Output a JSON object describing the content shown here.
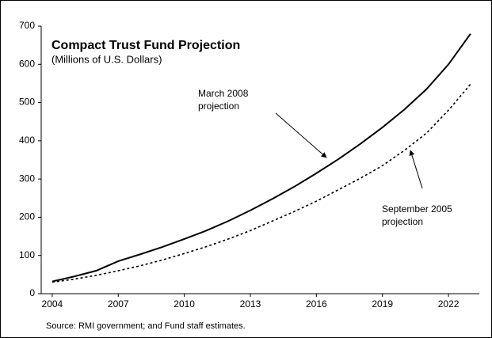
{
  "chart_data": {
    "type": "line",
    "title": "Compact Trust Fund Projection",
    "subtitle": "(Millions of U.S. Dollars)",
    "source": "Source: RMI government; and Fund staff estimates.",
    "x": [
      2004,
      2005,
      2006,
      2007,
      2008,
      2009,
      2010,
      2011,
      2012,
      2013,
      2014,
      2015,
      2016,
      2017,
      2018,
      2019,
      2020,
      2021,
      2022,
      2023
    ],
    "series": [
      {
        "name": [
          "March 2008",
          "projection"
        ],
        "color": "#000000",
        "dash": "solid",
        "values": [
          32,
          45,
          60,
          85,
          103,
          122,
          143,
          165,
          190,
          218,
          248,
          280,
          315,
          352,
          392,
          435,
          482,
          535,
          600,
          680
        ]
      },
      {
        "name": [
          "September 2005",
          "projection"
        ],
        "color": "#000000",
        "dash": "dotted",
        "values": [
          30,
          38,
          48,
          60,
          73,
          88,
          105,
          123,
          143,
          165,
          190,
          215,
          242,
          272,
          302,
          335,
          375,
          420,
          480,
          548
        ]
      }
    ],
    "xlim": [
      2003.5,
      2023.4
    ],
    "xticks": [
      2004,
      2007,
      2010,
      2013,
      2016,
      2019,
      2022
    ],
    "ylim": [
      0,
      700
    ],
    "yticks": [
      0,
      100,
      200,
      300,
      400,
      500,
      600,
      700
    ],
    "grid": false
  }
}
